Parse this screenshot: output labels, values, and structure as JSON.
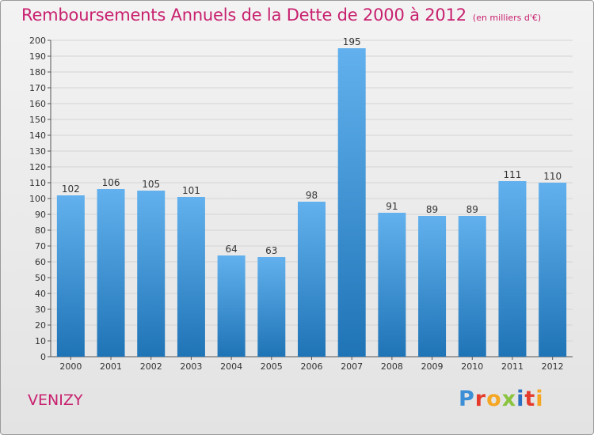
{
  "header": {
    "title": "Remboursements Annuels de la Dette de 2000 à 2012",
    "unit": "(en milliers d'€)"
  },
  "footer": {
    "commune": "VENIZY",
    "logo_text": "Proxiti",
    "logo_colors": [
      "#3c8fd6",
      "#e43b2c",
      "#f5a623",
      "#8ac43f",
      "#2b6fc2",
      "#e43b2c",
      "#f5a623"
    ]
  },
  "colors": {
    "accent": "#c8206e",
    "bar_top": "#62b1ee",
    "bar_bottom": "#1f74b6",
    "grid": "#d4d4d4"
  },
  "chart_data": {
    "type": "bar",
    "title": "Remboursements Annuels de la Dette de 2000 à 2012",
    "subtitle": "(en milliers d'€)",
    "categories": [
      "2000",
      "2001",
      "2002",
      "2003",
      "2004",
      "2005",
      "2006",
      "2007",
      "2008",
      "2009",
      "2010",
      "2011",
      "2012"
    ],
    "values": [
      102,
      106,
      105,
      101,
      64,
      63,
      98,
      195,
      91,
      89,
      89,
      111,
      110
    ],
    "ylim": [
      0,
      200
    ],
    "ytick_step": 10,
    "grid": true,
    "data_labels": true
  }
}
